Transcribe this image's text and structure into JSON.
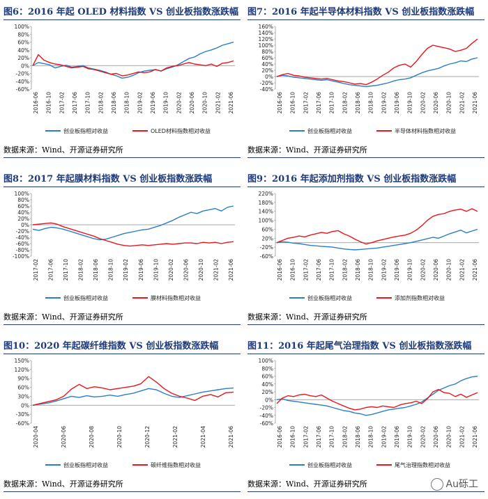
{
  "source_text": "数据来源：Wind、开源证券研究所",
  "watermark": "Au砾工",
  "colors": {
    "blue": "#2a7ec9",
    "red": "#e8151b",
    "title": "#1f3a78"
  },
  "chart_data": [
    {
      "type": "line",
      "title": "图6：2016 年起 OLED 材料指数 VS 创业板指数涨跌幅",
      "yticks": [
        "100%",
        "80%",
        "60%",
        "40%",
        "20%",
        "0%",
        "-20%",
        "-40%",
        "-60%"
      ],
      "ylim": [
        -60,
        100
      ],
      "xticks": [
        "2016-06",
        "2016-10",
        "2017-02",
        "2017-06",
        "2017-10",
        "2018-02",
        "2018-06",
        "2018-10",
        "2019-02",
        "2019-06",
        "2019-10",
        "2020-02",
        "2020-06",
        "2020-10",
        "2021-02",
        "2021-06"
      ],
      "series": [
        {
          "name": "创业板指相对收益",
          "color": "#2a7ec9",
          "values": [
            0,
            8,
            5,
            2,
            -6,
            -2,
            1,
            -4,
            -2,
            0,
            -6,
            -9,
            -12,
            -16,
            -22,
            -26,
            -32,
            -30,
            -25,
            -18,
            -14,
            -12,
            -10,
            -14,
            -8,
            -4,
            2,
            10,
            18,
            22,
            30,
            36,
            40,
            45,
            52,
            56,
            60
          ]
        },
        {
          "name": "OLED材料指数相对收益",
          "color": "#e8151b",
          "values": [
            0,
            28,
            14,
            8,
            4,
            2,
            -2,
            -6,
            -4,
            -2,
            -8,
            -10,
            -14,
            -18,
            -22,
            -20,
            -26,
            -24,
            -20,
            -16,
            -18,
            -16,
            -10,
            -14,
            -6,
            -2,
            0,
            4,
            8,
            4,
            2,
            0,
            4,
            -2,
            6,
            8,
            12
          ]
        }
      ]
    },
    {
      "type": "line",
      "title": "图7：2016 年起半导体材料指数 VS 创业板指数涨跌幅",
      "yticks": [
        "160%",
        "140%",
        "120%",
        "100%",
        "80%",
        "60%",
        "40%",
        "20%",
        "0%",
        "-20%",
        "-40%"
      ],
      "ylim": [
        -40,
        160
      ],
      "xticks": [
        "2016-06",
        "2016-10",
        "2017-02",
        "2017-06",
        "2017-10",
        "2018-02",
        "2018-06",
        "2018-10",
        "2019-02",
        "2019-06",
        "2019-10",
        "2020-02",
        "2020-06",
        "2020-10",
        "2021-02",
        "2021-06"
      ],
      "series": [
        {
          "name": "创业板指相对收益",
          "color": "#2a7ec9",
          "values": [
            0,
            4,
            2,
            -2,
            -4,
            -6,
            -8,
            -10,
            -12,
            -10,
            -14,
            -18,
            -22,
            -26,
            -28,
            -30,
            -32,
            -30,
            -28,
            -24,
            -20,
            -14,
            -10,
            -8,
            -4,
            4,
            12,
            18,
            22,
            26,
            34,
            40,
            44,
            50,
            48,
            56,
            60
          ]
        },
        {
          "name": "半导体材料指数相对收益",
          "color": "#e8151b",
          "values": [
            0,
            6,
            10,
            4,
            2,
            -2,
            -4,
            -6,
            -8,
            -6,
            -10,
            -14,
            -16,
            -20,
            -24,
            -22,
            -26,
            -18,
            -8,
            4,
            14,
            28,
            36,
            40,
            30,
            48,
            70,
            90,
            100,
            96,
            92,
            88,
            80,
            84,
            90,
            106,
            120
          ]
        }
      ]
    },
    {
      "type": "line",
      "title": "图8：2017 年起膜材料指数 VS 创业板指数涨跌幅",
      "yticks": [
        "100%",
        "80%",
        "60%",
        "40%",
        "20%",
        "0%",
        "-20%",
        "-40%",
        "-60%",
        "-80%",
        "-100%"
      ],
      "ylim": [
        -100,
        100
      ],
      "xticks": [
        "2017-02",
        "2017-06",
        "2017-10",
        "2018-02",
        "2018-06",
        "2018-10",
        "2019-02",
        "2019-06",
        "2019-10",
        "2020-02",
        "2020-06",
        "2020-10",
        "2021-02",
        "2021-06"
      ],
      "series": [
        {
          "name": "创业板指相对收益",
          "color": "#2a7ec9",
          "values": [
            -14,
            -18,
            -12,
            -8,
            -10,
            -14,
            -20,
            -26,
            -32,
            -38,
            -44,
            -48,
            -46,
            -40,
            -34,
            -28,
            -24,
            -20,
            -16,
            -14,
            -8,
            -2,
            6,
            14,
            24,
            32,
            40,
            36,
            44,
            48,
            52,
            44,
            56,
            60
          ]
        },
        {
          "name": "膜材料指数相对收益",
          "color": "#e8151b",
          "values": [
            0,
            2,
            4,
            6,
            2,
            -6,
            -12,
            -18,
            -24,
            -30,
            -36,
            -44,
            -50,
            -56,
            -62,
            -66,
            -68,
            -66,
            -64,
            -66,
            -64,
            -62,
            -60,
            -62,
            -60,
            -58,
            -58,
            -60,
            -56,
            -58,
            -56,
            -60,
            -56,
            -54
          ]
        }
      ]
    },
    {
      "type": "line",
      "title": "图9：2016 年起添加剂指数 VS 创业板指数涨跌幅",
      "yticks": [
        "220%",
        "180%",
        "140%",
        "100%",
        "60%",
        "20%",
        "-20%",
        "-60%"
      ],
      "ylim": [
        -60,
        220
      ],
      "xticks": [
        "2016-06",
        "2016-10",
        "2017-02",
        "2017-06",
        "2017-10",
        "2018-02",
        "2018-06",
        "2018-10",
        "2019-02",
        "2019-06",
        "2019-10",
        "2020-02",
        "2020-06",
        "2020-10",
        "2021-02",
        "2021-06"
      ],
      "series": [
        {
          "name": "创业板指相对收益",
          "color": "#2a7ec9",
          "values": [
            0,
            4,
            2,
            -2,
            -4,
            -8,
            -12,
            -14,
            -16,
            -18,
            -20,
            -24,
            -28,
            -30,
            -32,
            -30,
            -28,
            -26,
            -24,
            -20,
            -16,
            -12,
            -8,
            -4,
            0,
            6,
            12,
            18,
            24,
            20,
            30,
            40,
            48,
            56,
            44,
            52,
            60
          ]
        },
        {
          "name": "添加剂指数相对收益",
          "color": "#e8151b",
          "values": [
            0,
            10,
            20,
            24,
            30,
            26,
            34,
            40,
            46,
            42,
            50,
            54,
            40,
            30,
            16,
            4,
            -6,
            0,
            8,
            14,
            20,
            26,
            30,
            34,
            42,
            56,
            76,
            100,
            118,
            126,
            130,
            140,
            146,
            150,
            140,
            152,
            140
          ]
        }
      ]
    },
    {
      "type": "line",
      "title": "图10：2020 年起碳纤维指数 VS 创业板指数涨跌幅",
      "yticks": [
        "150%",
        "120%",
        "90%",
        "60%",
        "30%",
        "0%",
        "-30%",
        "-60%"
      ],
      "ylim": [
        -60,
        150
      ],
      "xticks": [
        "2020-04",
        "2020-06",
        "2020-08",
        "2020-10",
        "2020-12",
        "2021-02",
        "2021-04",
        "2021-06"
      ],
      "series": [
        {
          "name": "创业板指相对收益",
          "color": "#2a7ec9",
          "values": [
            0,
            4,
            8,
            14,
            22,
            30,
            26,
            32,
            28,
            30,
            34,
            30,
            36,
            40,
            48,
            56,
            52,
            40,
            30,
            26,
            32,
            38,
            44,
            48,
            52,
            56,
            58
          ]
        },
        {
          "name": "碳纤维指数相对收益",
          "color": "#e8151b",
          "values": [
            0,
            6,
            12,
            18,
            30,
            54,
            70,
            56,
            62,
            58,
            52,
            56,
            60,
            64,
            72,
            96,
            78,
            56,
            40,
            30,
            24,
            16,
            30,
            36,
            28,
            42,
            44
          ]
        }
      ]
    },
    {
      "type": "line",
      "title": "图11：2016 年起尾气治理指数 VS 创业板指数涨跌幅",
      "yticks": [
        "100%",
        "80%",
        "60%",
        "40%",
        "20%",
        "0%",
        "-20%",
        "-40%",
        "-60%"
      ],
      "ylim": [
        -60,
        100
      ],
      "xticks": [
        "2016-06",
        "2016-10",
        "2017-02",
        "2017-06",
        "2017-10",
        "2018-02",
        "2018-06",
        "2018-10",
        "2019-02",
        "2019-06",
        "2019-10",
        "2020-02",
        "2020-06",
        "2020-10",
        "2021-02",
        "2021-06"
      ],
      "series": [
        {
          "name": "创业板指相对收益",
          "color": "#2a7ec9",
          "values": [
            0,
            2,
            -2,
            -4,
            -6,
            -8,
            -10,
            -12,
            -14,
            -16,
            -20,
            -24,
            -28,
            -30,
            -34,
            -36,
            -40,
            -38,
            -34,
            -30,
            -26,
            -24,
            -22,
            -20,
            -16,
            -12,
            -6,
            4,
            14,
            24,
            30,
            36,
            40,
            48,
            54,
            58,
            60
          ]
        },
        {
          "name": "尾气治理指数相对收益",
          "color": "#e8151b",
          "values": [
            -10,
            4,
            10,
            8,
            12,
            14,
            10,
            8,
            12,
            4,
            -4,
            -10,
            -16,
            -22,
            -26,
            -24,
            -20,
            -18,
            -20,
            -16,
            -18,
            -20,
            -14,
            -10,
            -8,
            -4,
            -10,
            2,
            20,
            26,
            18,
            16,
            8,
            14,
            6,
            12,
            18
          ]
        }
      ]
    }
  ]
}
